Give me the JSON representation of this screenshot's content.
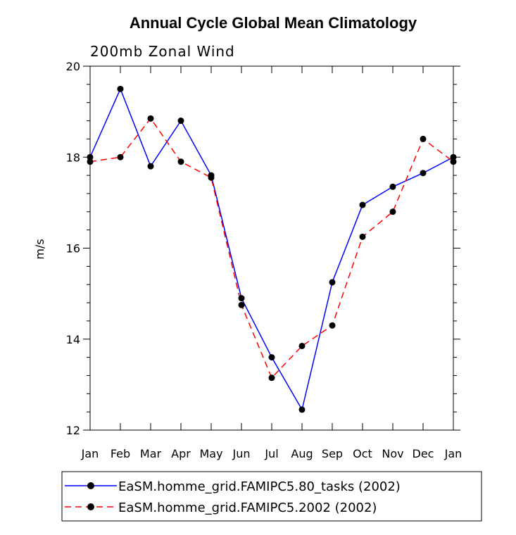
{
  "chart_data": {
    "type": "line",
    "title": "Annual Cycle Global Mean Climatology",
    "subtitle": "200mb Zonal Wind",
    "ylabel": "m/s",
    "xlabel": "",
    "ylim": [
      12,
      20
    ],
    "yticks": [
      "12",
      "14",
      "16",
      "18",
      "20"
    ],
    "categories": [
      "Jan",
      "Feb",
      "Mar",
      "Apr",
      "May",
      "Jun",
      "Jul",
      "Aug",
      "Sep",
      "Oct",
      "Nov",
      "Dec",
      "Jan"
    ],
    "series": [
      {
        "name": "EaSM.homme_grid.FAMIPC5.80_tasks (2002)",
        "color": "#0000ff",
        "dash": "solid",
        "values": [
          18.0,
          19.5,
          17.8,
          18.8,
          17.6,
          14.9,
          13.6,
          12.45,
          15.25,
          16.95,
          17.35,
          17.65,
          18.0
        ]
      },
      {
        "name": "EaSM.homme_grid.FAMIPC5.2002 (2002)",
        "color": "#ff0000",
        "dash": "dashed",
        "values": [
          17.9,
          18.0,
          18.85,
          17.9,
          17.55,
          14.75,
          13.15,
          13.85,
          14.3,
          16.25,
          16.8,
          18.4,
          17.9
        ]
      }
    ],
    "legend_position": "bottom"
  }
}
